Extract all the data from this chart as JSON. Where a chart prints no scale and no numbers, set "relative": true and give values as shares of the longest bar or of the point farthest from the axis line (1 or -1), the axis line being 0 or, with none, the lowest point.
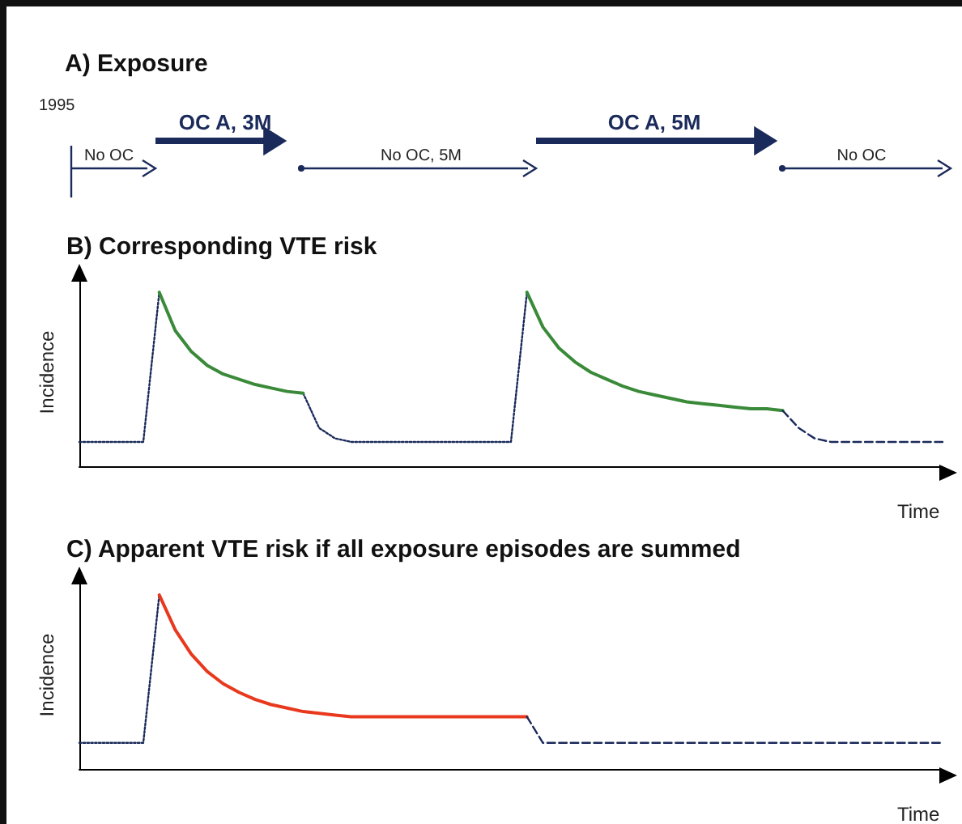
{
  "chart_data": [
    {
      "type": "other",
      "title": "A) Exposure",
      "annotations": [
        "1995",
        "No OC",
        "OC A, 3M",
        "No OC, 5M",
        "OC A, 5M",
        "No OC"
      ]
    },
    {
      "type": "line",
      "title": "B) Corresponding VTE risk",
      "xlabel": "Time",
      "ylabel": "Incidence",
      "relative": true,
      "marker": "none",
      "categories": [
        null,
        null,
        null,
        null,
        null,
        null,
        null,
        null,
        null,
        null,
        null,
        null,
        null,
        null,
        null,
        null,
        null,
        null,
        null,
        null,
        null,
        null,
        null,
        null,
        null,
        null,
        null,
        null,
        null,
        null,
        null,
        null,
        null,
        null,
        null,
        null,
        null,
        null,
        null,
        null,
        null,
        null,
        null,
        null,
        null,
        null,
        null,
        null,
        null,
        null,
        null,
        null,
        null,
        null,
        null
      ],
      "series": [
        {
          "color": "#1a2a5a",
          "line_style": "dotted",
          "values": [
            0.14,
            0.14,
            0.14,
            0.14,
            0.14,
            1,
            null,
            null,
            null,
            null,
            null,
            null,
            null,
            null,
            0.42,
            0.22,
            0.16,
            0.14,
            0.14,
            0.14,
            0.14,
            0.14,
            0.14,
            0.14,
            0.14,
            0.14,
            0.14,
            0.14,
            1,
            null,
            null,
            null,
            null,
            null,
            null,
            null,
            null,
            null,
            null,
            null,
            null,
            null,
            null,
            null,
            null,
            null,
            null,
            null,
            null,
            null,
            null,
            null,
            null,
            null,
            null
          ]
        },
        {
          "color": "#3a8a3a",
          "line_style": "solid",
          "values": [
            null,
            null,
            null,
            null,
            null,
            1,
            0.78,
            0.66,
            0.58,
            0.53,
            0.5,
            0.47,
            0.45,
            0.43,
            0.42,
            null,
            null,
            null,
            null,
            null,
            null,
            null,
            null,
            null,
            null,
            null,
            null,
            null,
            1,
            0.8,
            0.68,
            0.6,
            0.54,
            0.5,
            0.46,
            0.43,
            0.41,
            0.39,
            0.37,
            0.36,
            0.35,
            0.34,
            0.33,
            0.33,
            0.32,
            null,
            null,
            null,
            null,
            null,
            null,
            null,
            null,
            null,
            null
          ]
        },
        {
          "color": "#1a2a5a",
          "line_style": "dashed",
          "values": [
            null,
            null,
            null,
            null,
            null,
            null,
            null,
            null,
            null,
            null,
            null,
            null,
            null,
            null,
            null,
            null,
            null,
            null,
            null,
            null,
            null,
            null,
            null,
            null,
            null,
            null,
            null,
            null,
            null,
            null,
            null,
            null,
            null,
            null,
            null,
            null,
            null,
            null,
            null,
            null,
            null,
            null,
            null,
            null,
            0.32,
            0.22,
            0.16,
            0.14,
            0.14,
            0.14,
            0.14,
            0.14,
            0.14,
            0.14,
            0.14
          ]
        }
      ]
    },
    {
      "type": "line",
      "title": "C) Apparent VTE risk if all exposure episodes are summed",
      "xlabel": "Time",
      "ylabel": "Incidence",
      "relative": true,
      "marker": "none",
      "categories": [
        null,
        null,
        null,
        null,
        null,
        null,
        null,
        null,
        null,
        null,
        null,
        null,
        null,
        null,
        null,
        null,
        null,
        null,
        null,
        null,
        null,
        null,
        null,
        null,
        null,
        null,
        null,
        null,
        null,
        null,
        null,
        null,
        null,
        null,
        null,
        null,
        null,
        null,
        null,
        null,
        null,
        null,
        null,
        null,
        null,
        null,
        null,
        null,
        null,
        null,
        null,
        null,
        null,
        null,
        null
      ],
      "series": [
        {
          "color": "#1a2a5a",
          "line_style": "dotted",
          "values": [
            0.15,
            0.15,
            0.15,
            0.15,
            0.15,
            1,
            null,
            null,
            null,
            null,
            null,
            null,
            null,
            null,
            null,
            null,
            null,
            null,
            null,
            null,
            null,
            null,
            null,
            null,
            null,
            null,
            null,
            null,
            null,
            null,
            null,
            null,
            null,
            null,
            null,
            null,
            null,
            null,
            null,
            null,
            null,
            null,
            null,
            null,
            null,
            null,
            null,
            null,
            null,
            null,
            null,
            null,
            null,
            null,
            null
          ]
        },
        {
          "color": "#e8391e",
          "line_style": "solid",
          "values": [
            null,
            null,
            null,
            null,
            null,
            1,
            0.8,
            0.66,
            0.56,
            0.49,
            0.44,
            0.4,
            0.37,
            0.35,
            0.33,
            0.32,
            0.31,
            0.3,
            0.3,
            0.3,
            0.3,
            0.3,
            0.3,
            0.3,
            0.3,
            0.3,
            0.3,
            0.3,
            0.3,
            null,
            null,
            null,
            null,
            null,
            null,
            null,
            null,
            null,
            null,
            null,
            null,
            null,
            null,
            null,
            null,
            null,
            null,
            null,
            null,
            null,
            null,
            null,
            null,
            null,
            null
          ]
        },
        {
          "color": "#1a2a5a",
          "line_style": "dashed",
          "values": [
            null,
            null,
            null,
            null,
            null,
            null,
            null,
            null,
            null,
            null,
            null,
            null,
            null,
            null,
            null,
            null,
            null,
            null,
            null,
            null,
            null,
            null,
            null,
            null,
            null,
            null,
            null,
            null,
            0.3,
            0.15,
            0.15,
            0.15,
            0.15,
            0.15,
            0.15,
            0.15,
            0.15,
            0.15,
            0.15,
            0.15,
            0.15,
            0.15,
            0.15,
            0.15,
            0.15,
            0.15,
            0.15,
            0.15,
            0.15,
            0.15,
            0.15,
            0.15,
            0.15,
            0.15,
            0.15
          ]
        }
      ]
    }
  ]
}
